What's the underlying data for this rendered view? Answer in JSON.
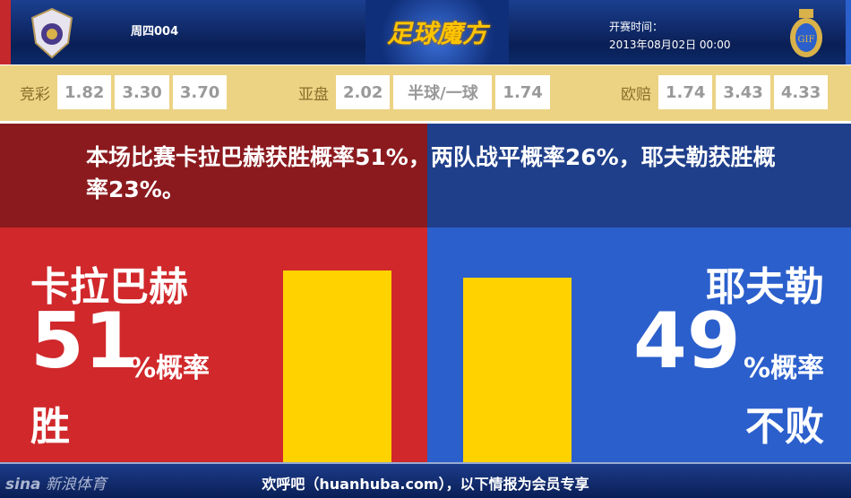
{
  "header": {
    "match_no": "周四004",
    "logo_text": "足球魔方",
    "kickoff_label": "开赛时间：",
    "kickoff_time": "2013年08月02日 00:00",
    "home_badge_text": "",
    "away_badge_text": "GIF"
  },
  "odds": {
    "jingcai": {
      "label": "竞彩",
      "values": [
        "1.82",
        "3.30",
        "3.70"
      ]
    },
    "yapan": {
      "label": "亚盘",
      "values": [
        "2.02",
        "半球/一球",
        "1.74"
      ]
    },
    "oupei": {
      "label": "欧赔",
      "values": [
        "1.74",
        "3.43",
        "4.33"
      ]
    }
  },
  "summary": "本场比赛卡拉巴赫获胜概率51%，两队战平概率26%，耶夫勒获胜概率23%。",
  "home": {
    "name": "卡拉巴赫",
    "percent": "51",
    "unit": "%概率",
    "outcome": "胜",
    "bar_percent": 51,
    "color": "#d0282b"
  },
  "away": {
    "name": "耶夫勒",
    "percent": "49",
    "unit": "%概率",
    "outcome": "不败",
    "bar_percent": 49,
    "color": "#2b5fcc"
  },
  "bar_color": "#ffd200",
  "footer": {
    "brand": "新浪体育",
    "brand_logo": "sina",
    "note": "欢呼吧（huanhuba.com），以下情报为会员专享"
  }
}
